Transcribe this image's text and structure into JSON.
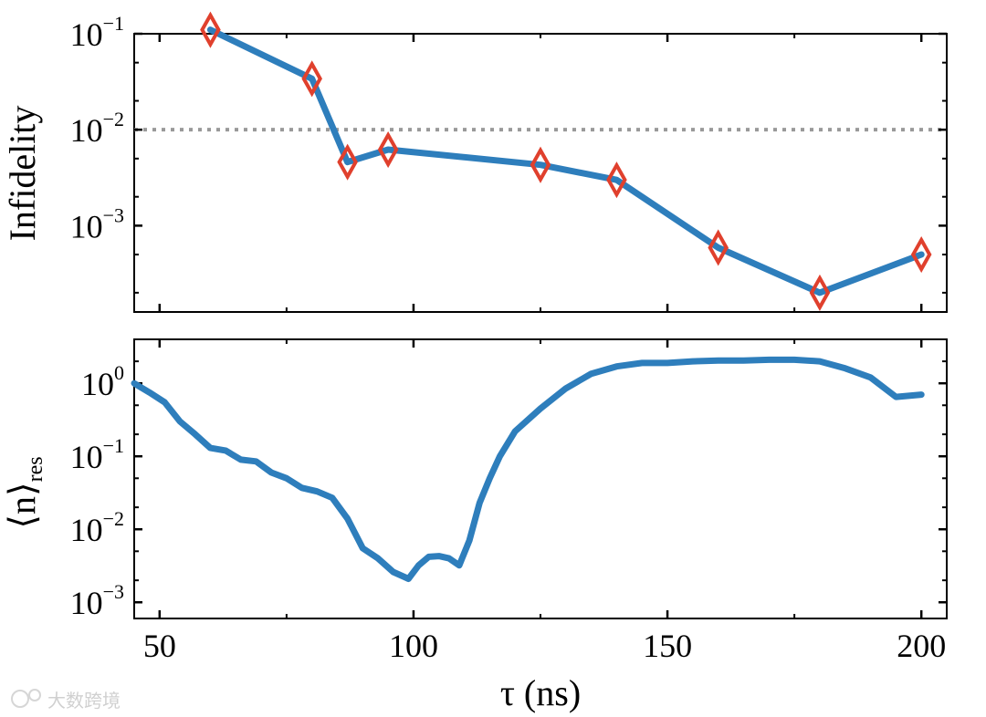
{
  "chart_data": [
    {
      "type": "line",
      "panel": "top",
      "ylabel": "Infidelity",
      "yscale": "log",
      "ylim": [
        0.000126,
        0.1
      ],
      "xlim": [
        45,
        205
      ],
      "y_tick_labels": [
        {
          "base": "10",
          "exp": "−1",
          "value": 0.1
        },
        {
          "base": "10",
          "exp": "−2",
          "value": 0.01
        },
        {
          "base": "10",
          "exp": "−3",
          "value": 0.001
        }
      ],
      "threshold": 0.01,
      "series": [
        {
          "x": [
            60,
            80,
            87,
            95,
            125,
            140,
            160,
            180,
            200
          ],
          "y": [
            0.11,
            0.034,
            0.0046,
            0.0062,
            0.0043,
            0.003,
            0.00059,
            0.0002,
            0.0005
          ]
        }
      ]
    },
    {
      "type": "line",
      "panel": "bottom",
      "ylabel": "⟨n⟩res",
      "yscale": "log",
      "ylim": [
        0.0006,
        4.0
      ],
      "xlim": [
        45,
        205
      ],
      "y_tick_labels": [
        {
          "base": "10",
          "exp": "0",
          "value": 1
        },
        {
          "base": "10",
          "exp": "−1",
          "value": 0.1
        },
        {
          "base": "10",
          "exp": "−2",
          "value": 0.01
        },
        {
          "base": "10",
          "exp": "−3",
          "value": 0.001
        }
      ],
      "series": [
        {
          "x": [
            45,
            48,
            51,
            54,
            57,
            60,
            63,
            66,
            69,
            72,
            75,
            78,
            81,
            84,
            87,
            90,
            93,
            96,
            99,
            101,
            103,
            105,
            107,
            109,
            111,
            113,
            115,
            117,
            120,
            125,
            130,
            135,
            140,
            145,
            150,
            155,
            160,
            165,
            170,
            175,
            180,
            185,
            190,
            195,
            200
          ],
          "y": [
            1.0,
            0.75,
            0.55,
            0.3,
            0.2,
            0.13,
            0.12,
            0.09,
            0.085,
            0.06,
            0.05,
            0.037,
            0.033,
            0.027,
            0.014,
            0.0055,
            0.004,
            0.0026,
            0.0021,
            0.0032,
            0.0042,
            0.0043,
            0.004,
            0.0032,
            0.007,
            0.023,
            0.05,
            0.1,
            0.22,
            0.45,
            0.85,
            1.35,
            1.7,
            1.9,
            1.9,
            2.0,
            2.05,
            2.05,
            2.1,
            2.1,
            2.0,
            1.6,
            1.2,
            0.65,
            0.7
          ]
        }
      ],
      "x_tick_labels": [
        "50",
        "100",
        "150",
        "200"
      ],
      "xlabel": "τ (ns)"
    }
  ],
  "labels": {
    "top_ylabel": "Infidelity",
    "bottom_ylabel_main": "⟨n⟩",
    "bottom_ylabel_sub": "res",
    "xlabel": "τ (ns)",
    "watermark": "大数跨境"
  }
}
